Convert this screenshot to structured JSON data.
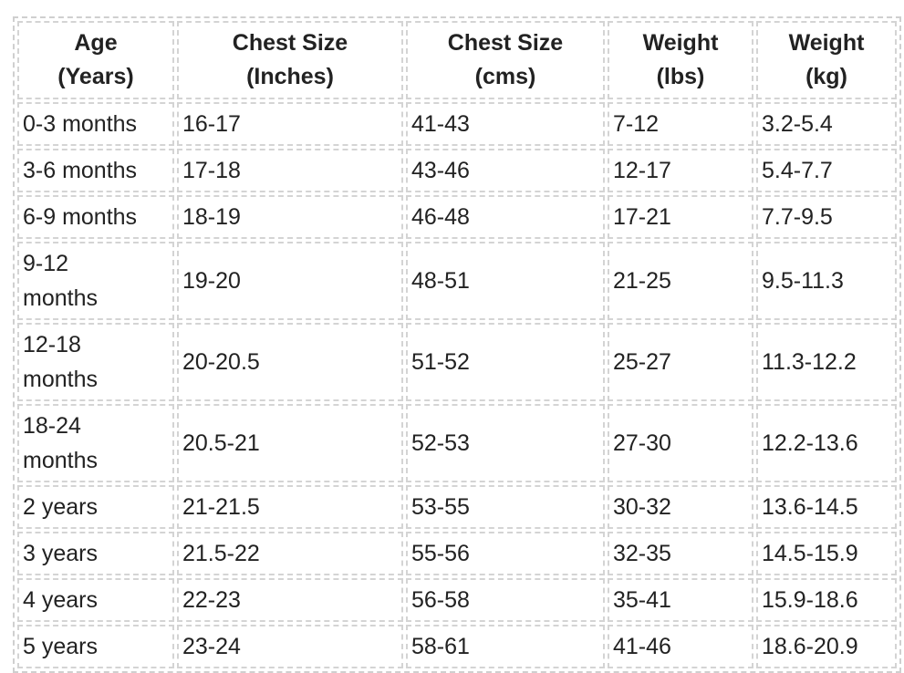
{
  "table": {
    "header": [
      [
        "Age",
        "(Years)"
      ],
      [
        "Chest Size",
        "(Inches)"
      ],
      [
        "Chest Size",
        "(cms)"
      ],
      [
        "Weight",
        "(lbs)"
      ],
      [
        "Weight",
        "(kg)"
      ]
    ],
    "rows": [
      [
        "0-3 months",
        "16-17",
        "41-43",
        "7-12",
        "3.2-5.4"
      ],
      [
        "3-6 months",
        "17-18",
        "43-46",
        "12-17",
        "5.4-7.7"
      ],
      [
        "6-9 months",
        "18-19",
        "46-48",
        "17-21",
        "7.7-9.5"
      ],
      [
        "9-12 months",
        "19-20",
        "48-51",
        "21-25",
        "9.5-11.3"
      ],
      [
        "12-18 months",
        "20-20.5",
        "51-52",
        "25-27",
        "11.3-12.2"
      ],
      [
        "18-24 months",
        "20.5-21",
        "52-53",
        "27-30",
        "12.2-13.6"
      ],
      [
        "2 years",
        "21-21.5",
        "53-55",
        "30-32",
        "13.6-14.5"
      ],
      [
        "3 years",
        "21.5-22",
        "55-56",
        "32-35",
        "14.5-15.9"
      ],
      [
        "4 years",
        "22-23",
        "56-58",
        "35-41",
        "15.9-18.6"
      ],
      [
        "5 years",
        "23-24",
        "58-61",
        "41-46",
        "18.6-20.9"
      ]
    ]
  }
}
